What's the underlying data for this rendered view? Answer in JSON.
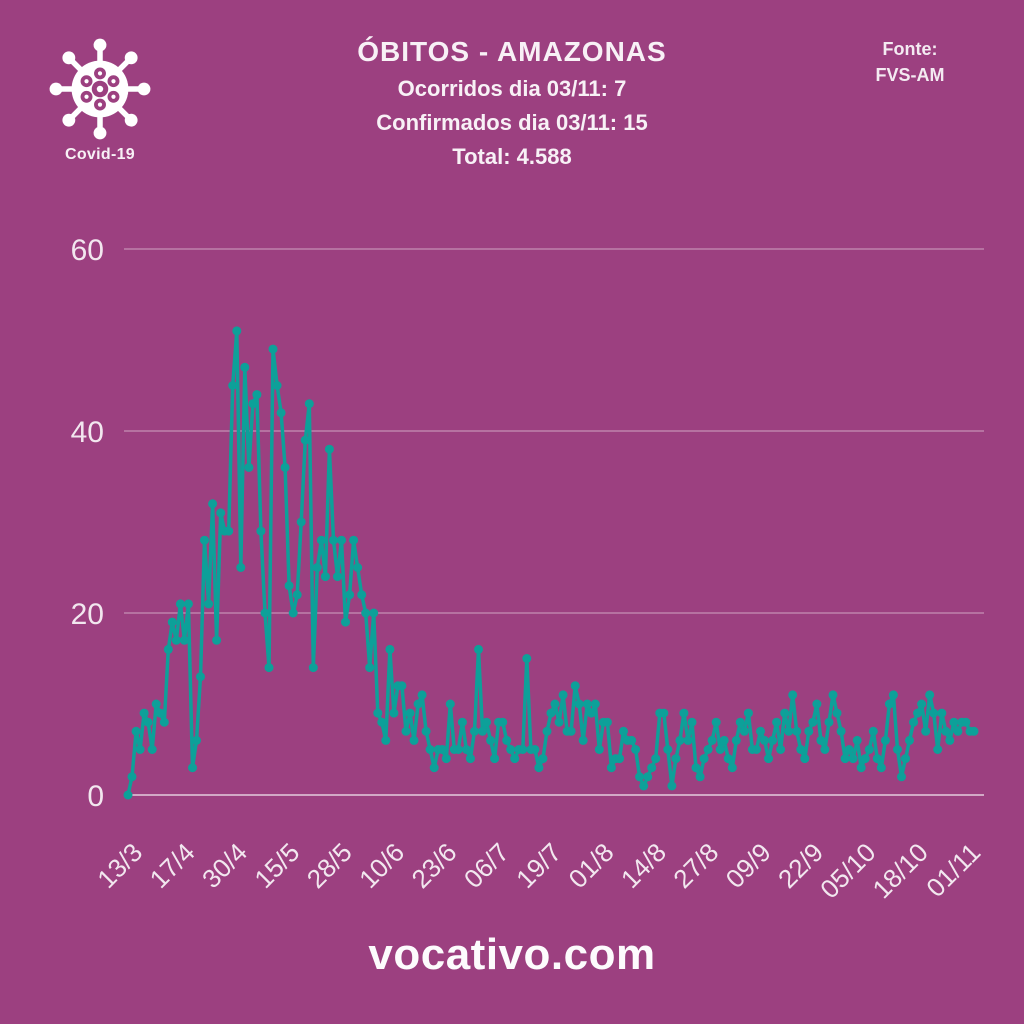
{
  "badge": {
    "label": "Covid-19"
  },
  "header": {
    "title": "ÓBITOS - AMAZONAS",
    "line1": "Ocorridos dia 03/11: 7",
    "line2": "Confirmados dia 03/11: 15",
    "line3": "Total: 4.588",
    "source_label": "Fonte:",
    "source_value": "FVS-AM"
  },
  "footer": {
    "site": "vocativo.com"
  },
  "colors": {
    "background": "#9C4080",
    "line": "#0DA099",
    "grid": "rgba(255,255,255,0.35)",
    "baseline": "rgba(255,255,255,0.55)",
    "text": "#F2E7EF"
  },
  "chart_data": {
    "type": "line",
    "title": "ÓBITOS - AMAZONAS",
    "xlabel": "",
    "ylabel": "",
    "ylim": [
      0,
      60
    ],
    "yticks": [
      0,
      20,
      40,
      60
    ],
    "grid": true,
    "legend": "none",
    "marker": "circle",
    "x_labels": [
      "13/3",
      "17/4",
      "30/4",
      "15/5",
      "28/5",
      "10/6",
      "23/6",
      "06/7",
      "19/7",
      "01/8",
      "14/8",
      "27/8",
      "09/9",
      "22/9",
      "05/10",
      "18/10",
      "01/11"
    ],
    "label_every": 13,
    "values": [
      0,
      2,
      7,
      5,
      9,
      8,
      5,
      10,
      9,
      8,
      16,
      19,
      17,
      21,
      17,
      21,
      3,
      6,
      13,
      28,
      21,
      32,
      17,
      31,
      29,
      29,
      45,
      51,
      25,
      47,
      36,
      43,
      44,
      29,
      20,
      14,
      49,
      45,
      42,
      36,
      23,
      20,
      22,
      30,
      39,
      43,
      14,
      25,
      28,
      24,
      38,
      28,
      24,
      28,
      19,
      22,
      28,
      25,
      22,
      20,
      14,
      20,
      9,
      8,
      6,
      16,
      9,
      12,
      12,
      7,
      9,
      6,
      10,
      11,
      7,
      5,
      3,
      5,
      5,
      4,
      10,
      5,
      5,
      8,
      5,
      4,
      7,
      16,
      7,
      8,
      6,
      4,
      8,
      8,
      6,
      5,
      4,
      5,
      5,
      15,
      5,
      5,
      3,
      4,
      7,
      9,
      10,
      8,
      11,
      7,
      7,
      12,
      10,
      6,
      10,
      9,
      10,
      5,
      8,
      8,
      3,
      4,
      4,
      7,
      6,
      6,
      5,
      2,
      1,
      2,
      3,
      4,
      9,
      9,
      5,
      1,
      4,
      6,
      9,
      6,
      8,
      3,
      2,
      4,
      5,
      6,
      8,
      5,
      6,
      4,
      3,
      6,
      8,
      7,
      9,
      5,
      5,
      7,
      6,
      4,
      6,
      8,
      5,
      9,
      7,
      11,
      7,
      5,
      4,
      7,
      8,
      10,
      6,
      5,
      8,
      11,
      9,
      7,
      4,
      5,
      4,
      6,
      3,
      4,
      5,
      7,
      4,
      3,
      6,
      10,
      11,
      5,
      2,
      4,
      6,
      8,
      9,
      10,
      7,
      11,
      9,
      5,
      9,
      7,
      6,
      8,
      7,
      8,
      8,
      7,
      7
    ]
  }
}
